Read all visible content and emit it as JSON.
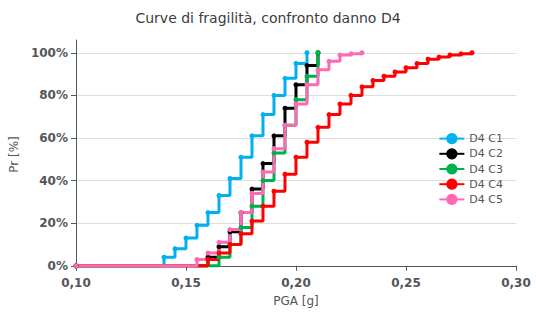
{
  "chart_data": {
    "type": "line",
    "title": "Curve di fragilità, confronto danno D4",
    "xlabel": "PGA [g]",
    "ylabel": "Pr [%]",
    "xlim": [
      0.1,
      0.3
    ],
    "ylim": [
      -0.015,
      1.06
    ],
    "xticks": [
      {
        "value": 0.1,
        "label": "0,10"
      },
      {
        "value": 0.15,
        "label": "0,15"
      },
      {
        "value": 0.2,
        "label": "0,20"
      },
      {
        "value": 0.25,
        "label": "0,25"
      },
      {
        "value": 0.3,
        "label": "0,30"
      }
    ],
    "yticks": [
      {
        "value": 0.0,
        "label": "0%"
      },
      {
        "value": 0.2,
        "label": "20%"
      },
      {
        "value": 0.4,
        "label": "40%"
      },
      {
        "value": 0.6,
        "label": "60%"
      },
      {
        "value": 0.8,
        "label": "80%"
      },
      {
        "value": 1.0,
        "label": "100%"
      }
    ],
    "line_style": "step",
    "marker": "circle",
    "grid": "y",
    "legend": "right",
    "series": [
      {
        "name": "D4 C1",
        "color": "#00B0F0",
        "x": [
          0.1,
          0.14,
          0.145,
          0.15,
          0.155,
          0.16,
          0.165,
          0.17,
          0.175,
          0.18,
          0.185,
          0.19,
          0.195,
          0.2,
          0.205
        ],
        "values": [
          0.0,
          0.04,
          0.08,
          0.13,
          0.19,
          0.25,
          0.33,
          0.41,
          0.51,
          0.61,
          0.71,
          0.8,
          0.88,
          0.95,
          1.0
        ]
      },
      {
        "name": "D4 C2",
        "color": "#000000",
        "x": [
          0.1,
          0.16,
          0.165,
          0.17,
          0.175,
          0.18,
          0.185,
          0.19,
          0.195,
          0.2,
          0.205,
          0.21
        ],
        "values": [
          0.0,
          0.04,
          0.09,
          0.16,
          0.25,
          0.36,
          0.48,
          0.61,
          0.74,
          0.85,
          0.94,
          1.0
        ]
      },
      {
        "name": "D4 C3",
        "color": "#00B050",
        "x": [
          0.1,
          0.165,
          0.17,
          0.175,
          0.18,
          0.185,
          0.19,
          0.195,
          0.2,
          0.205,
          0.21
        ],
        "values": [
          0.0,
          0.04,
          0.1,
          0.18,
          0.28,
          0.4,
          0.53,
          0.66,
          0.78,
          0.89,
          1.0
        ]
      },
      {
        "name": "D4 C4",
        "color": "#FF0000",
        "x": [
          0.1,
          0.16,
          0.165,
          0.17,
          0.175,
          0.18,
          0.185,
          0.19,
          0.195,
          0.2,
          0.205,
          0.21,
          0.215,
          0.22,
          0.225,
          0.23,
          0.235,
          0.24,
          0.245,
          0.25,
          0.255,
          0.26,
          0.265,
          0.27,
          0.275,
          0.28
        ],
        "values": [
          0.0,
          0.03,
          0.06,
          0.1,
          0.15,
          0.21,
          0.28,
          0.35,
          0.43,
          0.51,
          0.58,
          0.65,
          0.71,
          0.76,
          0.8,
          0.84,
          0.87,
          0.89,
          0.91,
          0.93,
          0.95,
          0.97,
          0.98,
          0.99,
          0.995,
          1.0
        ]
      },
      {
        "name": "D4 C5",
        "color": "#FF69B4",
        "x": [
          0.1,
          0.155,
          0.16,
          0.165,
          0.17,
          0.175,
          0.18,
          0.185,
          0.19,
          0.195,
          0.2,
          0.205,
          0.21,
          0.215,
          0.22,
          0.225,
          0.23
        ],
        "values": [
          0.0,
          0.03,
          0.06,
          0.11,
          0.17,
          0.25,
          0.34,
          0.44,
          0.55,
          0.66,
          0.76,
          0.85,
          0.92,
          0.96,
          0.99,
          0.995,
          1.0
        ]
      }
    ]
  }
}
